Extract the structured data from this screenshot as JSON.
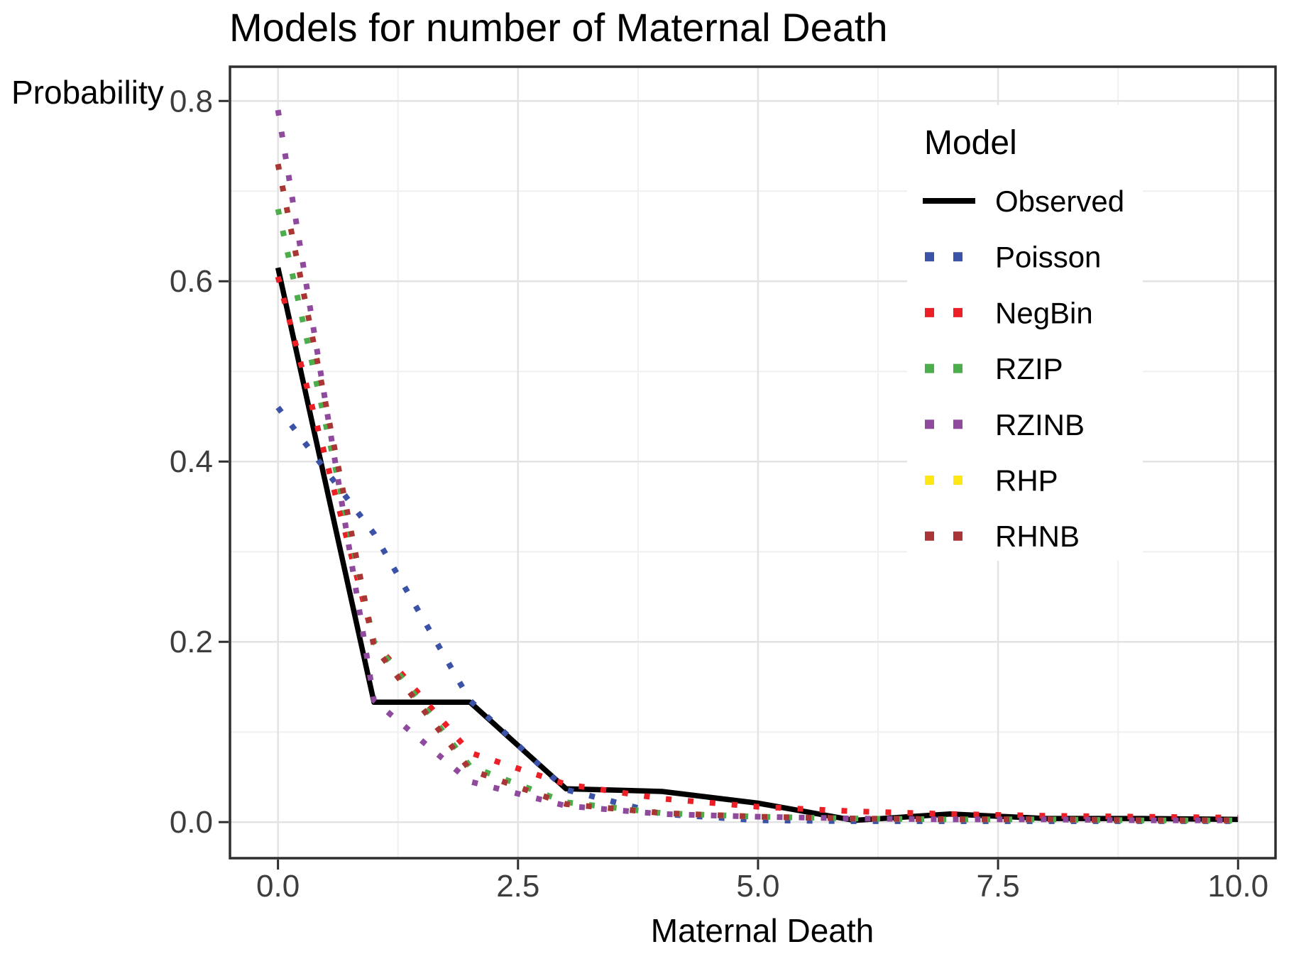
{
  "page": {
    "background": "#ffffff"
  },
  "chart_data": {
    "type": "line",
    "title": "Models for number of Maternal Death",
    "xlabel": "Maternal Death",
    "ylabel": "Probability",
    "legend": {
      "title": "Model",
      "position": "inside-top-right",
      "background": "#ffffff"
    },
    "x": [
      0,
      1,
      2,
      3,
      4,
      5,
      6,
      7,
      8,
      9,
      10
    ],
    "series": [
      {
        "name": "Observed",
        "color": "#000000",
        "linetype": "solid",
        "values": [
          0.615,
          0.133,
          0.133,
          0.037,
          0.034,
          0.021,
          0.002,
          0.009,
          0.004,
          0.004,
          0.003
        ]
      },
      {
        "name": "Poisson",
        "color": "#3B52A6",
        "linetype": "dotted",
        "values": [
          0.46,
          0.32,
          0.135,
          0.036,
          0.009,
          0.002,
          0.001,
          0.001,
          0.001,
          0.001,
          0.001
        ]
      },
      {
        "name": "NegBin",
        "color": "#EC1F26",
        "linetype": "dotted",
        "values": [
          0.605,
          0.2,
          0.077,
          0.042,
          0.026,
          0.017,
          0.012,
          0.009,
          0.007,
          0.006,
          0.005
        ]
      },
      {
        "name": "RZIP",
        "color": "#4BAD4B",
        "linetype": "dotted",
        "values": [
          0.68,
          0.2,
          0.062,
          0.022,
          0.01,
          0.006,
          0.004,
          0.003,
          0.003,
          0.002,
          0.002
        ]
      },
      {
        "name": "RZINB",
        "color": "#8F4A9E",
        "linetype": "dotted",
        "values": [
          0.79,
          0.135,
          0.045,
          0.018,
          0.009,
          0.006,
          0.004,
          0.003,
          0.003,
          0.002,
          0.002
        ]
      },
      {
        "name": "RHP",
        "color": "#FFE715",
        "linetype": "dotted",
        "values": [
          0.73,
          0.195,
          0.058,
          0.02,
          0.01,
          0.006,
          0.004,
          0.003,
          0.003,
          0.002,
          0.002
        ]
      },
      {
        "name": "RHNB",
        "color": "#A93539",
        "linetype": "dotted",
        "values": [
          0.73,
          0.195,
          0.058,
          0.02,
          0.01,
          0.006,
          0.004,
          0.003,
          0.003,
          0.002,
          0.002
        ]
      }
    ],
    "xticks": [
      {
        "value": 0,
        "label": "0.0"
      },
      {
        "value": 2.5,
        "label": "2.5"
      },
      {
        "value": 5,
        "label": "5.0"
      },
      {
        "value": 7.5,
        "label": "7.5"
      },
      {
        "value": 10,
        "label": "10.0"
      }
    ],
    "yticks": [
      {
        "value": 0,
        "label": "0.0"
      },
      {
        "value": 0.2,
        "label": "0.2"
      },
      {
        "value": 0.4,
        "label": "0.4"
      },
      {
        "value": 0.6,
        "label": "0.6"
      },
      {
        "value": 0.8,
        "label": "0.8"
      }
    ],
    "xlim": [
      -0.5,
      10.39
    ],
    "ylim": [
      -0.04,
      0.838
    ],
    "grid": {
      "on": true,
      "major_color": "#e3e3e3",
      "minor_color": "#f0f0f0",
      "minor_x": [
        1.25,
        3.75,
        6.25,
        8.75
      ],
      "minor_y": [
        0.1,
        0.3,
        0.5,
        0.7
      ]
    },
    "panel_border_color": "#2e2e2e",
    "axis_text_color": "#3d3d3d"
  }
}
